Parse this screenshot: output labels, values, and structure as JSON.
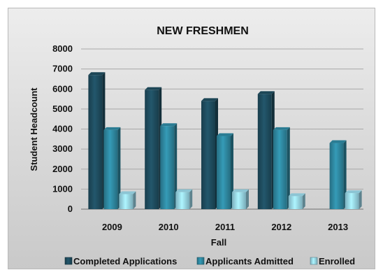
{
  "chart_data": {
    "type": "bar",
    "title": "NEW FRESHMEN",
    "xlabel": "Fall",
    "ylabel": "Student Headcount",
    "categories": [
      "2009",
      "2010",
      "2011",
      "2012",
      "2013"
    ],
    "ylim": [
      0,
      8000
    ],
    "yticks": [
      0,
      1000,
      2000,
      3000,
      4000,
      5000,
      6000,
      7000,
      8000
    ],
    "grid": true,
    "legend_position": "bottom",
    "series": [
      {
        "name": "Completed Applications",
        "values": [
          6700,
          5950,
          5400,
          5750,
          null
        ],
        "color": "#1f4e60"
      },
      {
        "name": "Applicants Admitted",
        "values": [
          3950,
          4150,
          3650,
          3950,
          3300
        ],
        "color": "#2f8aa3"
      },
      {
        "name": "Enrolled",
        "values": [
          750,
          850,
          850,
          650,
          800
        ],
        "color": "#9bdbec"
      }
    ]
  }
}
